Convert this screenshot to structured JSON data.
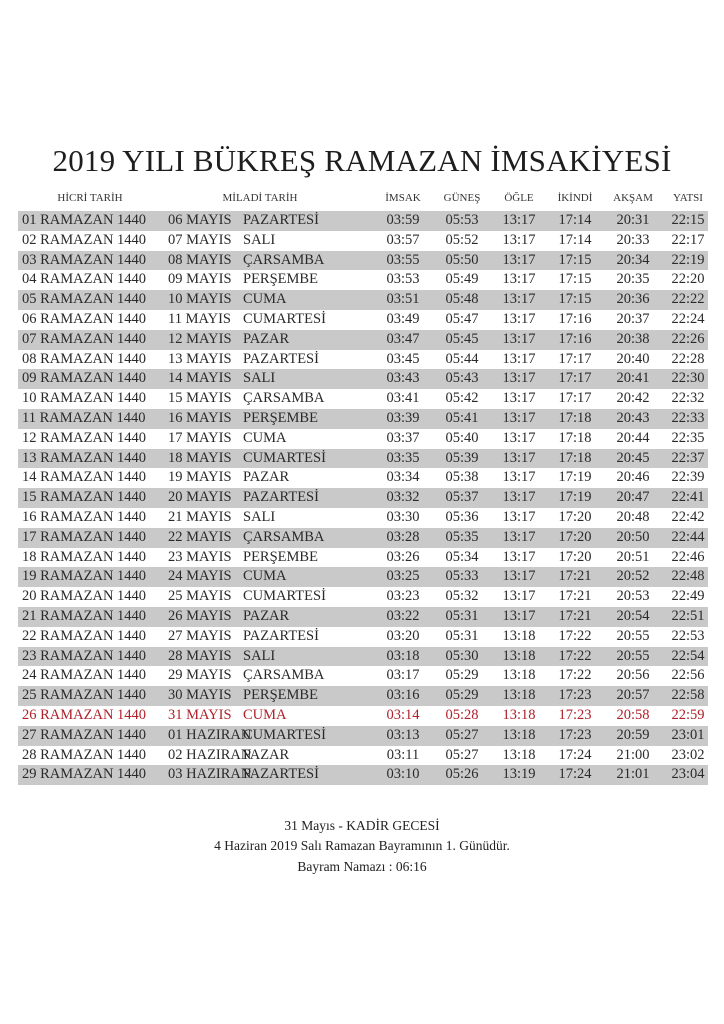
{
  "title": "2019 YILI BÜKREŞ RAMAZAN İMSAKİYESİ",
  "headers": {
    "hicri": "HİCRİ TARİH",
    "miladi": "MİLADİ TARİH",
    "imsak": "İMSAK",
    "gunes": "GÜNEŞ",
    "ogle": "ÖĞLE",
    "ikindi": "İKİNDİ",
    "aksam": "AKŞAM",
    "yatsi": "YATSI"
  },
  "highlight_color": "#b0202a",
  "rows": [
    [
      "01 RAMAZAN 1440",
      "06 MAYIS",
      "PAZARTESİ",
      "03:59",
      "05:53",
      "13:17",
      "17:14",
      "20:31",
      "22:15"
    ],
    [
      "02 RAMAZAN 1440",
      "07 MAYIS",
      "SALI",
      "03:57",
      "05:52",
      "13:17",
      "17:14",
      "20:33",
      "22:17"
    ],
    [
      "03 RAMAZAN 1440",
      "08 MAYIS",
      "ÇARSAMBA",
      "03:55",
      "05:50",
      "13:17",
      "17:15",
      "20:34",
      "22:19"
    ],
    [
      "04 RAMAZAN 1440",
      "09 MAYIS",
      "PERŞEMBE",
      "03:53",
      "05:49",
      "13:17",
      "17:15",
      "20:35",
      "22:20"
    ],
    [
      "05 RAMAZAN 1440",
      "10 MAYIS",
      "CUMA",
      "03:51",
      "05:48",
      "13:17",
      "17:15",
      "20:36",
      "22:22"
    ],
    [
      "06 RAMAZAN 1440",
      "11 MAYIS",
      "CUMARTESİ",
      "03:49",
      "05:47",
      "13:17",
      "17:16",
      "20:37",
      "22:24"
    ],
    [
      "07 RAMAZAN 1440",
      "12 MAYIS",
      "PAZAR",
      "03:47",
      "05:45",
      "13:17",
      "17:16",
      "20:38",
      "22:26"
    ],
    [
      "08 RAMAZAN 1440",
      "13 MAYIS",
      "PAZARTESİ",
      "03:45",
      "05:44",
      "13:17",
      "17:17",
      "20:40",
      "22:28"
    ],
    [
      "09 RAMAZAN 1440",
      "14 MAYIS",
      "SALI",
      "03:43",
      "05:43",
      "13:17",
      "17:17",
      "20:41",
      "22:30"
    ],
    [
      "10 RAMAZAN 1440",
      "15 MAYIS",
      "ÇARSAMBA",
      "03:41",
      "05:42",
      "13:17",
      "17:17",
      "20:42",
      "22:32"
    ],
    [
      "11 RAMAZAN 1440",
      "16 MAYIS",
      "PERŞEMBE",
      "03:39",
      "05:41",
      "13:17",
      "17:18",
      "20:43",
      "22:33"
    ],
    [
      "12 RAMAZAN 1440",
      "17 MAYIS",
      "CUMA",
      "03:37",
      "05:40",
      "13:17",
      "17:18",
      "20:44",
      "22:35"
    ],
    [
      "13 RAMAZAN 1440",
      "18 MAYIS",
      "CUMARTESİ",
      "03:35",
      "05:39",
      "13:17",
      "17:18",
      "20:45",
      "22:37"
    ],
    [
      "14 RAMAZAN 1440",
      "19 MAYIS",
      "PAZAR",
      "03:34",
      "05:38",
      "13:17",
      "17:19",
      "20:46",
      "22:39"
    ],
    [
      "15 RAMAZAN 1440",
      "20 MAYIS",
      "PAZARTESİ",
      "03:32",
      "05:37",
      "13:17",
      "17:19",
      "20:47",
      "22:41"
    ],
    [
      "16 RAMAZAN 1440",
      "21 MAYIS",
      "SALI",
      "03:30",
      "05:36",
      "13:17",
      "17:20",
      "20:48",
      "22:42"
    ],
    [
      "17 RAMAZAN 1440",
      "22 MAYIS",
      "ÇARSAMBA",
      "03:28",
      "05:35",
      "13:17",
      "17:20",
      "20:50",
      "22:44"
    ],
    [
      "18 RAMAZAN 1440",
      "23 MAYIS",
      "PERŞEMBE",
      "03:26",
      "05:34",
      "13:17",
      "17:20",
      "20:51",
      "22:46"
    ],
    [
      "19 RAMAZAN 1440",
      "24 MAYIS",
      "CUMA",
      "03:25",
      "05:33",
      "13:17",
      "17:21",
      "20:52",
      "22:48"
    ],
    [
      "20 RAMAZAN 1440",
      "25 MAYIS",
      "CUMARTESİ",
      "03:23",
      "05:32",
      "13:17",
      "17:21",
      "20:53",
      "22:49"
    ],
    [
      "21 RAMAZAN 1440",
      "26 MAYIS",
      "PAZAR",
      "03:22",
      "05:31",
      "13:17",
      "17:21",
      "20:54",
      "22:51"
    ],
    [
      "22 RAMAZAN 1440",
      "27 MAYIS",
      "PAZARTESİ",
      "03:20",
      "05:31",
      "13:18",
      "17:22",
      "20:55",
      "22:53"
    ],
    [
      "23 RAMAZAN 1440",
      "28 MAYIS",
      "SALI",
      "03:18",
      "05:30",
      "13:18",
      "17:22",
      "20:55",
      "22:54"
    ],
    [
      "24 RAMAZAN 1440",
      "29 MAYIS",
      "ÇARSAMBA",
      "03:17",
      "05:29",
      "13:18",
      "17:22",
      "20:56",
      "22:56"
    ],
    [
      "25 RAMAZAN 1440",
      "30 MAYIS",
      "PERŞEMBE",
      "03:16",
      "05:29",
      "13:18",
      "17:23",
      "20:57",
      "22:58"
    ],
    [
      "26 RAMAZAN 1440",
      "31 MAYIS",
      "CUMA",
      "03:14",
      "05:28",
      "13:18",
      "17:23",
      "20:58",
      "22:59"
    ],
    [
      "27 RAMAZAN 1440",
      "01 HAZIRAN",
      "CUMARTESİ",
      "03:13",
      "05:27",
      "13:18",
      "17:23",
      "20:59",
      "23:01"
    ],
    [
      "28 RAMAZAN 1440",
      "02 HAZIRAN",
      "PAZAR",
      "03:11",
      "05:27",
      "13:18",
      "17:24",
      "21:00",
      "23:02"
    ],
    [
      "29 RAMAZAN 1440",
      "03 HAZIRAN",
      "PAZARTESİ",
      "03:10",
      "05:26",
      "13:19",
      "17:24",
      "21:01",
      "23:04"
    ]
  ],
  "highlighted_row": 25,
  "footer": {
    "line1": "31 Mayıs - KADİR GECESİ",
    "line2": "4 Haziran 2019 Salı Ramazan Bayramının 1. Günüdür.",
    "line3": "Bayram Namazı : 06:16"
  }
}
